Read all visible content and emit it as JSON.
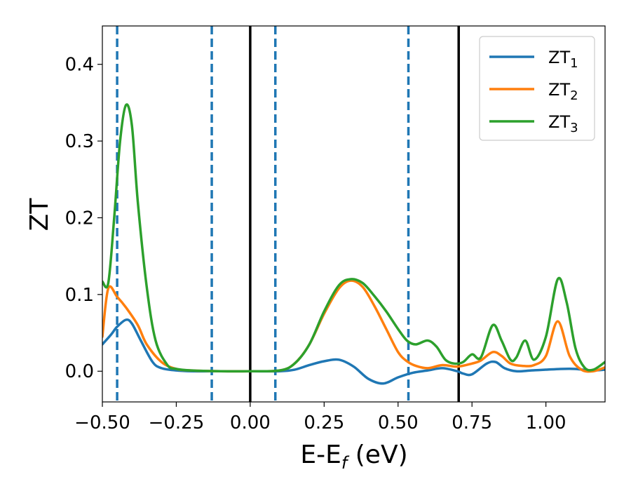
{
  "chart_data": {
    "type": "line",
    "title": "",
    "xlabel": {
      "main": "E-E",
      "sub": "f",
      "suffix": " (eV)"
    },
    "ylabel": "ZT",
    "xlim": [
      -0.5,
      1.2
    ],
    "ylim": [
      -0.04,
      0.45
    ],
    "xticks": [
      -0.5,
      -0.25,
      0.0,
      0.25,
      0.5,
      0.75,
      1.0
    ],
    "xtick_labels": [
      "−0.50",
      "−0.25",
      "0.00",
      "0.25",
      "0.50",
      "0.75",
      "1.00"
    ],
    "yticks": [
      0.0,
      0.1,
      0.2,
      0.3,
      0.4
    ],
    "ytick_labels": [
      "0.0",
      "0.1",
      "0.2",
      "0.3",
      "0.4"
    ],
    "grid": false,
    "legend_position": "top-right",
    "vlines_dashed": [
      -0.45,
      -0.13,
      0.085,
      0.535
    ],
    "vlines_solid": [
      0.0,
      0.705
    ],
    "vline_dashed_color": "#1f77b4",
    "vline_solid_color": "#000000",
    "series": [
      {
        "legend_main": "ZT",
        "legend_sub": "1",
        "color": "#1f77b4",
        "x": [
          -0.5,
          -0.47,
          -0.45,
          -0.42,
          -0.4,
          -0.37,
          -0.33,
          -0.3,
          -0.25,
          -0.2,
          -0.1,
          0.0,
          0.1,
          0.15,
          0.2,
          0.25,
          0.3,
          0.35,
          0.4,
          0.45,
          0.5,
          0.55,
          0.6,
          0.65,
          0.7,
          0.72,
          0.75,
          0.8,
          0.83,
          0.86,
          0.9,
          0.95,
          1.0,
          1.05,
          1.1,
          1.15,
          1.2
        ],
        "y": [
          0.035,
          0.048,
          0.058,
          0.067,
          0.062,
          0.04,
          0.012,
          0.004,
          0.001,
          0.0,
          0.0,
          0.0,
          0.0,
          0.002,
          0.008,
          0.013,
          0.015,
          0.006,
          -0.01,
          -0.016,
          -0.008,
          -0.002,
          0.001,
          0.004,
          0.0,
          -0.003,
          -0.004,
          0.01,
          0.012,
          0.004,
          0.0,
          0.001,
          0.002,
          0.003,
          0.003,
          0.001,
          0.002
        ]
      },
      {
        "legend_main": "ZT",
        "legend_sub": "2",
        "color": "#ff7f0e",
        "x": [
          -0.5,
          -0.48,
          -0.45,
          -0.42,
          -0.38,
          -0.35,
          -0.3,
          -0.25,
          -0.2,
          -0.1,
          0.0,
          0.1,
          0.15,
          0.2,
          0.25,
          0.3,
          0.34,
          0.38,
          0.42,
          0.46,
          0.5,
          0.53,
          0.56,
          0.6,
          0.65,
          0.7,
          0.75,
          0.78,
          0.82,
          0.85,
          0.88,
          0.92,
          0.96,
          1.0,
          1.04,
          1.08,
          1.12,
          1.16,
          1.2
        ],
        "y": [
          0.045,
          0.108,
          0.097,
          0.083,
          0.06,
          0.035,
          0.012,
          0.003,
          0.001,
          0.0,
          0.0,
          0.001,
          0.01,
          0.035,
          0.075,
          0.108,
          0.118,
          0.11,
          0.085,
          0.055,
          0.025,
          0.013,
          0.007,
          0.004,
          0.008,
          0.006,
          0.01,
          0.014,
          0.025,
          0.02,
          0.01,
          0.007,
          0.008,
          0.02,
          0.065,
          0.02,
          0.002,
          0.0,
          0.005
        ]
      },
      {
        "legend_main": "ZT",
        "legend_sub": "3",
        "color": "#2ca02c",
        "x": [
          -0.5,
          -0.48,
          -0.46,
          -0.44,
          -0.42,
          -0.4,
          -0.38,
          -0.35,
          -0.32,
          -0.28,
          -0.25,
          -0.2,
          -0.1,
          0.0,
          0.1,
          0.15,
          0.2,
          0.25,
          0.3,
          0.34,
          0.38,
          0.42,
          0.46,
          0.5,
          0.53,
          0.56,
          0.6,
          0.63,
          0.66,
          0.69,
          0.72,
          0.75,
          0.78,
          0.82,
          0.85,
          0.88,
          0.9,
          0.93,
          0.96,
          1.0,
          1.04,
          1.07,
          1.1,
          1.13,
          1.16,
          1.2
        ],
        "y": [
          0.117,
          0.115,
          0.2,
          0.3,
          0.347,
          0.32,
          0.22,
          0.11,
          0.04,
          0.008,
          0.003,
          0.001,
          0.0,
          0.0,
          0.001,
          0.01,
          0.035,
          0.078,
          0.112,
          0.12,
          0.115,
          0.098,
          0.078,
          0.055,
          0.04,
          0.035,
          0.04,
          0.032,
          0.015,
          0.01,
          0.012,
          0.022,
          0.018,
          0.06,
          0.04,
          0.015,
          0.018,
          0.04,
          0.015,
          0.045,
          0.12,
          0.09,
          0.03,
          0.005,
          0.002,
          0.012
        ]
      }
    ]
  }
}
